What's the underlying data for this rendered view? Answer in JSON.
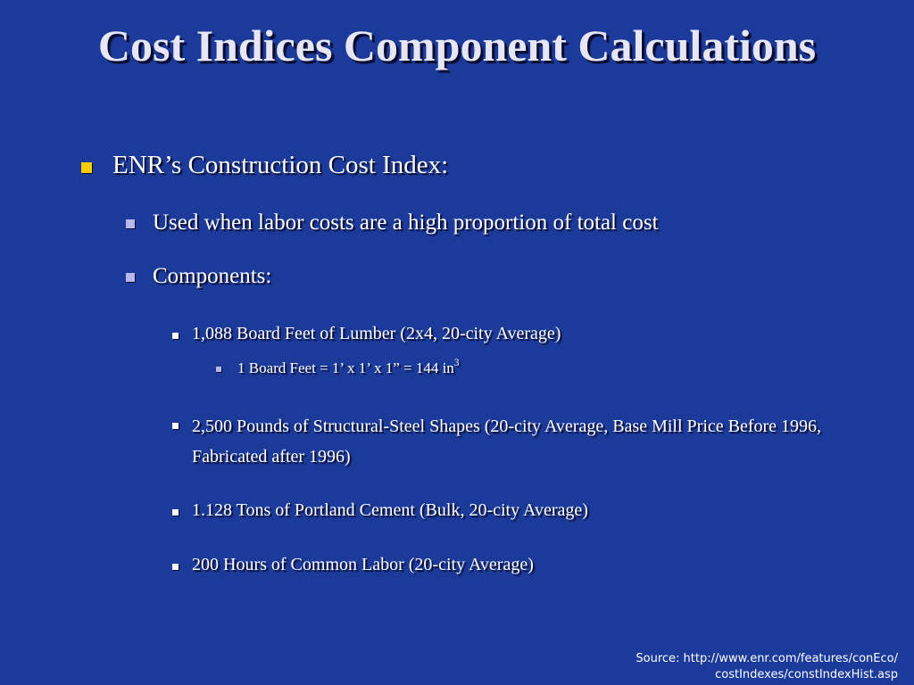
{
  "slide": {
    "title": "Cost Indices Component Calculations",
    "bullets": {
      "level1": "ENR’s Construction Cost Index:",
      "used_when": "Used when labor costs are a high proportion of total cost",
      "components": "Components:",
      "lumber": "1,088 Board Feet of Lumber (2x4, 20-city Average)",
      "board_feet_def": "1 Board Feet = 1’ x 1’ x 1” = 144 in",
      "board_feet_sup": "3",
      "steel": "2,500 Pounds of Structural-Steel Shapes (20-city Average, Base Mill Price Before 1996, Fabricated after 1996)",
      "cement": "1.128 Tons of Portland Cement (Bulk, 20-city Average)",
      "labor": "200 Hours of Common Labor (20-city Average)"
    },
    "source_line1": "Source: http://www.enr.com/features/conEco/",
    "source_line2": "costIndexes/constIndexHist.asp"
  },
  "colors": {
    "background": "#1b3a99",
    "bullet_level1": "#ffcc00",
    "bullet_level2": "#b8b8f0",
    "text": "#ffffff"
  },
  "icons": {
    "level1_bullet": "square-bullet-icon",
    "level2_bullet": "square-bullet-icon",
    "level3_bullet": "square-bullet-icon",
    "level4_bullet": "square-bullet-icon"
  }
}
